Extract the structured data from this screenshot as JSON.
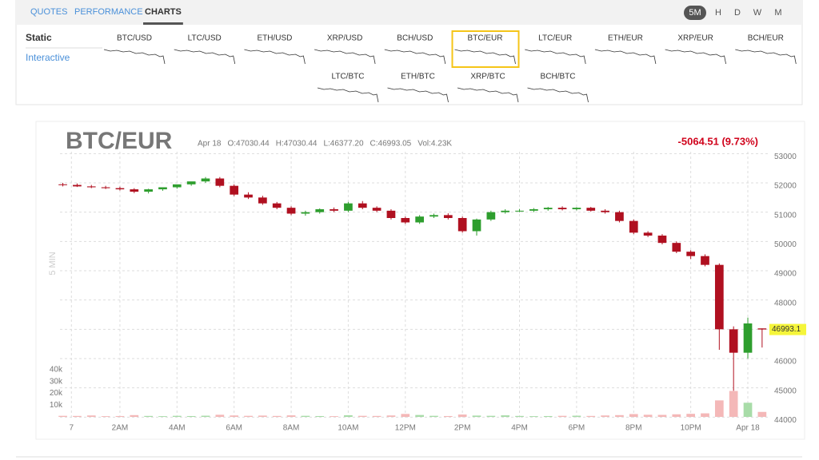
{
  "nav": {
    "tabs": [
      "QUOTES",
      "PERFORMANCE",
      "CHARTS"
    ],
    "active_tab": 2,
    "intervals": [
      "5M",
      "H",
      "D",
      "W",
      "M"
    ],
    "active_interval": 0
  },
  "sidebar": {
    "items": [
      "Static",
      "Interactive"
    ]
  },
  "pairs": {
    "row1": [
      "BTC/USD",
      "LTC/USD",
      "ETH/USD",
      "XRP/USD",
      "BCH/USD",
      "BTC/EUR",
      "LTC/EUR",
      "ETH/EUR",
      "XRP/EUR",
      "BCH/EUR"
    ],
    "row2": [
      "LTC/BTC",
      "ETH/BTC",
      "XRP/BTC",
      "BCH/BTC"
    ],
    "selected_row1": 5
  },
  "chart_data": {
    "type": "candlestick",
    "title": "BTC/EUR",
    "info": [
      "Apr 18",
      "O:47030.44",
      "H:47030.44",
      "L:46377.20",
      "C:46993.05",
      "Vol:4.23K"
    ],
    "change": "-5064.51 (9.73%)",
    "watermark": "5 MIN",
    "x": [
      0,
      0.5,
      1,
      1.5,
      2,
      2.5,
      3,
      3.5,
      4,
      4.5,
      5,
      5.5,
      6,
      6.5,
      7,
      7.5,
      8,
      8.5,
      9,
      9.5,
      10,
      10.5,
      11,
      11.5,
      12,
      12.5,
      13,
      13.5,
      14,
      14.5,
      15,
      15.5,
      16,
      16.5,
      17,
      17.5,
      18,
      18.5,
      19,
      19.5,
      20,
      20.5,
      21,
      21.5,
      22,
      22.5,
      23,
      23.5,
      24,
      24.5
    ],
    "open": [
      51950,
      51930,
      51880,
      51850,
      51820,
      51780,
      51700,
      51780,
      51850,
      51950,
      52050,
      52150,
      51900,
      51600,
      51500,
      51300,
      51150,
      50950,
      51000,
      51100,
      51050,
      51300,
      51150,
      51050,
      50800,
      50650,
      50850,
      50900,
      50800,
      50350,
      50750,
      51000,
      51050,
      51050,
      51100,
      51150,
      51100,
      51150,
      51050,
      51000,
      50700,
      50300,
      50200,
      49950,
      49650,
      49500,
      49200,
      47000,
      46200,
      47030.44
    ],
    "high": [
      52000,
      51980,
      51930,
      51900,
      51870,
      51820,
      51800,
      51840,
      51910,
      52010,
      52200,
      52200,
      51950,
      51680,
      51560,
      51350,
      51200,
      51050,
      51130,
      51160,
      51350,
      51380,
      51200,
      51100,
      50850,
      50900,
      50950,
      50960,
      50850,
      50780,
      51050,
      51100,
      51110,
      51140,
      51180,
      51200,
      51170,
      51180,
      51100,
      51050,
      50750,
      50350,
      50250,
      50000,
      49700,
      49560,
      49250,
      47100,
      47400,
      47030.44
    ],
    "low": [
      51880,
      51860,
      51820,
      51790,
      51740,
      51650,
      51640,
      51730,
      51800,
      51900,
      52000,
      51850,
      51550,
      51450,
      51250,
      51100,
      50900,
      50880,
      50950,
      51000,
      51000,
      51100,
      51000,
      50750,
      50600,
      50600,
      50800,
      50750,
      50300,
      50200,
      50700,
      50950,
      51000,
      51000,
      51050,
      51060,
      51060,
      51020,
      50950,
      50650,
      50250,
      50150,
      49900,
      49600,
      49400,
      49150,
      46300,
      44900,
      46000,
      46377.2
    ],
    "close": [
      51930,
      51880,
      51850,
      51820,
      51780,
      51700,
      51780,
      51850,
      51950,
      52050,
      52150,
      51900,
      51600,
      51500,
      51300,
      51150,
      50950,
      51000,
      51100,
      51050,
      51300,
      51150,
      51050,
      50800,
      50650,
      50850,
      50900,
      50800,
      50350,
      50750,
      51000,
      51050,
      51050,
      51100,
      51150,
      51100,
      51150,
      51050,
      51000,
      50700,
      50300,
      50200,
      49950,
      49650,
      49500,
      49200,
      47000,
      46200,
      47200,
      46993.05
    ],
    "volume": [
      900,
      800,
      1200,
      600,
      700,
      1500,
      800,
      600,
      900,
      700,
      1000,
      1800,
      1200,
      900,
      1100,
      800,
      1300,
      900,
      700,
      600,
      1400,
      900,
      800,
      1200,
      2500,
      1600,
      900,
      700,
      2000,
      1100,
      900,
      1300,
      800,
      600,
      700,
      900,
      1000,
      800,
      1200,
      1500,
      2400,
      1800,
      1700,
      2200,
      2600,
      3000,
      14000,
      22000,
      12000,
      4230
    ],
    "xlim": [
      -0.1,
      24.7
    ],
    "xticks": [
      {
        "value": 0.3,
        "label": "7"
      },
      {
        "value": 2,
        "label": "2AM"
      },
      {
        "value": 4,
        "label": "4AM"
      },
      {
        "value": 6,
        "label": "6AM"
      },
      {
        "value": 8,
        "label": "8AM"
      },
      {
        "value": 10,
        "label": "10AM"
      },
      {
        "value": 12,
        "label": "12PM"
      },
      {
        "value": 14,
        "label": "2PM"
      },
      {
        "value": 16,
        "label": "4PM"
      },
      {
        "value": 18,
        "label": "6PM"
      },
      {
        "value": 20,
        "label": "8PM"
      },
      {
        "value": 22,
        "label": "10PM"
      },
      {
        "value": 24,
        "label": "Apr 18"
      }
    ],
    "ylim": [
      43900,
      53500
    ],
    "yticks": [
      44000,
      45000,
      46000,
      47000,
      48000,
      49000,
      50000,
      51000,
      52000,
      53000
    ],
    "y2lim": [
      0,
      40000
    ],
    "y2ticks": [
      {
        "value": 10000,
        "label": "10k"
      },
      {
        "value": 20000,
        "label": "20k"
      },
      {
        "value": 30000,
        "label": "30k"
      },
      {
        "value": 40000,
        "label": "40k"
      }
    ],
    "up_color": "#2e9e2e",
    "down_color": "#b01020",
    "up_volume_color": "#a8dca8",
    "down_volume_color": "#f4b8b8",
    "grid": true,
    "last_price": {
      "value": 46993.05,
      "label": "46993.1"
    }
  }
}
